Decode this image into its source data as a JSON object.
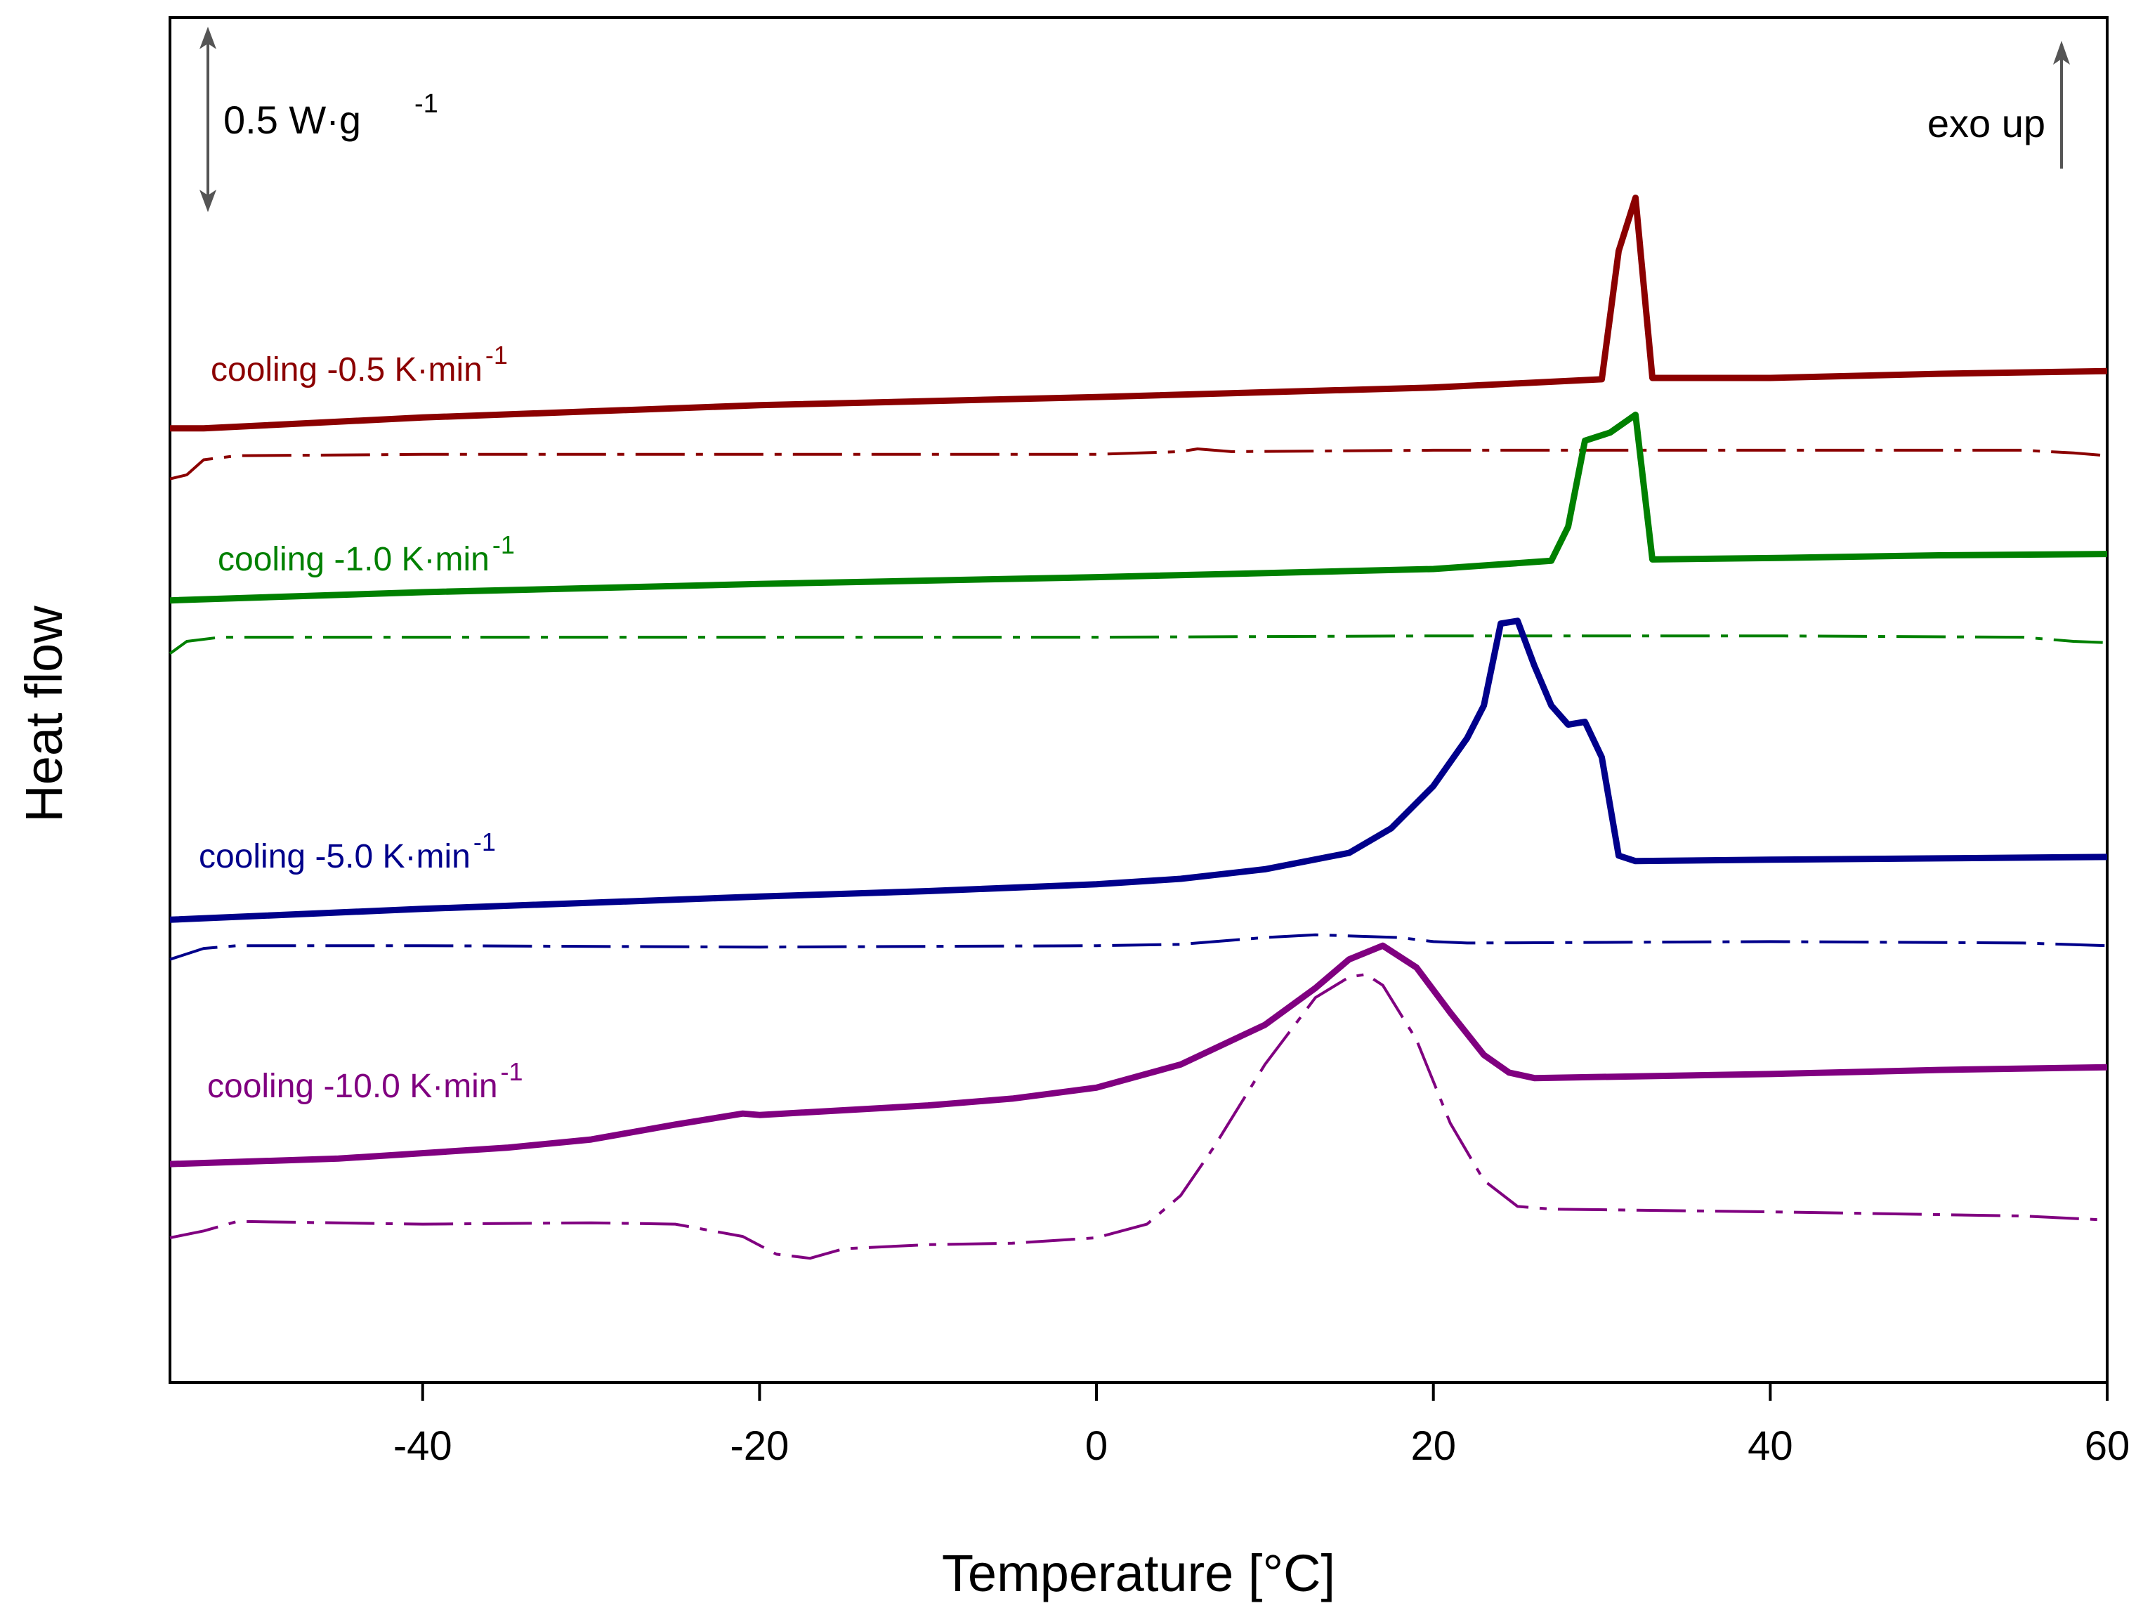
{
  "chart_data": {
    "type": "line",
    "xlabel": "Temperature [°C]",
    "ylabel": "Heat flow",
    "xlim": [
      -55,
      60
    ],
    "ylim": [
      0,
      100
    ],
    "yticks_shown": false,
    "xticks": [
      -40,
      -20,
      0,
      20,
      40,
      60
    ],
    "xtick_labels": [
      "-40",
      "-20",
      "0",
      "20",
      "40",
      "60"
    ],
    "annotations": {
      "scale_bar_value": "0.5 W·g",
      "scale_bar_exp": "-1",
      "exo_text": "exo up"
    },
    "series": [
      {
        "name": "cooling -0.5 K·min-1",
        "label_main": "cooling -0.5 K·min",
        "label_exp": "-1",
        "color": "#8b0000",
        "style": "solid",
        "points": [
          [
            -55,
            69.9
          ],
          [
            -53,
            69.9
          ],
          [
            -40,
            70.7
          ],
          [
            -20,
            71.6
          ],
          [
            0,
            72.2
          ],
          [
            20,
            72.9
          ],
          [
            30,
            73.5
          ],
          [
            31,
            82.9
          ],
          [
            32,
            86.8
          ],
          [
            33,
            73.6
          ],
          [
            40,
            73.6
          ],
          [
            50,
            73.9
          ],
          [
            60,
            74.1
          ]
        ]
      },
      {
        "name": "cooling -0.5 K·min-1 (dash-dot)",
        "color": "#8b0000",
        "style": "dashdot",
        "points": [
          [
            -55,
            66.2
          ],
          [
            -54,
            66.5
          ],
          [
            -53,
            67.6
          ],
          [
            -51,
            67.9
          ],
          [
            -40,
            68.0
          ],
          [
            -20,
            68.0
          ],
          [
            0,
            68.0
          ],
          [
            5,
            68.2
          ],
          [
            6,
            68.4
          ],
          [
            8,
            68.2
          ],
          [
            20,
            68.3
          ],
          [
            40,
            68.3
          ],
          [
            55,
            68.3
          ],
          [
            58,
            68.1
          ],
          [
            60,
            67.9
          ]
        ]
      },
      {
        "name": "cooling -1.0 K·min-1",
        "label_main": "cooling -1.0 K·min",
        "label_exp": "-1",
        "color": "#008000",
        "style": "solid",
        "points": [
          [
            -55,
            57.3
          ],
          [
            -40,
            57.9
          ],
          [
            -20,
            58.5
          ],
          [
            0,
            59.0
          ],
          [
            20,
            59.6
          ],
          [
            27,
            60.2
          ],
          [
            28,
            62.7
          ],
          [
            29,
            69.0
          ],
          [
            30.5,
            69.6
          ],
          [
            32,
            70.9
          ],
          [
            33,
            60.3
          ],
          [
            40,
            60.4
          ],
          [
            50,
            60.6
          ],
          [
            60,
            60.7
          ]
        ]
      },
      {
        "name": "cooling -1.0 K·min-1 (dash-dot)",
        "color": "#008000",
        "style": "dashdot",
        "points": [
          [
            -55,
            53.4
          ],
          [
            -54,
            54.3
          ],
          [
            -52,
            54.6
          ],
          [
            -40,
            54.6
          ],
          [
            -20,
            54.6
          ],
          [
            0,
            54.6
          ],
          [
            20,
            54.7
          ],
          [
            40,
            54.7
          ],
          [
            55,
            54.6
          ],
          [
            58,
            54.3
          ],
          [
            60,
            54.2
          ]
        ]
      },
      {
        "name": "cooling -5.0 K·min-1",
        "label_main": "cooling -5.0 K·min",
        "label_exp": "-1",
        "color": "#00008b",
        "style": "solid",
        "points": [
          [
            -55,
            33.9
          ],
          [
            -40,
            34.7
          ],
          [
            -20,
            35.6
          ],
          [
            -10,
            36.0
          ],
          [
            0,
            36.5
          ],
          [
            5,
            36.9
          ],
          [
            10,
            37.6
          ],
          [
            15,
            38.8
          ],
          [
            17.5,
            40.6
          ],
          [
            20,
            43.7
          ],
          [
            22,
            47.2
          ],
          [
            23,
            49.6
          ],
          [
            24,
            55.6
          ],
          [
            25,
            55.8
          ],
          [
            26,
            52.5
          ],
          [
            27,
            49.6
          ],
          [
            28,
            48.2
          ],
          [
            29,
            48.4
          ],
          [
            30,
            45.8
          ],
          [
            31,
            38.6
          ],
          [
            32,
            38.2
          ],
          [
            40,
            38.3
          ],
          [
            50,
            38.4
          ],
          [
            60,
            38.5
          ]
        ]
      },
      {
        "name": "cooling -5.0 K·min-1 (dash-dot)",
        "color": "#00008b",
        "style": "dashdot",
        "points": [
          [
            -55,
            31.0
          ],
          [
            -53,
            31.8
          ],
          [
            -51,
            32.0
          ],
          [
            -40,
            32.0
          ],
          [
            -20,
            31.9
          ],
          [
            0,
            32.0
          ],
          [
            5,
            32.1
          ],
          [
            10,
            32.6
          ],
          [
            13,
            32.8
          ],
          [
            18,
            32.6
          ],
          [
            20,
            32.3
          ],
          [
            22,
            32.2
          ],
          [
            40,
            32.3
          ],
          [
            55,
            32.2
          ],
          [
            60,
            32.0
          ]
        ]
      },
      {
        "name": "cooling -10.0 K·min-1",
        "label_main": "cooling -10.0 K·min",
        "label_exp": "-1",
        "color": "#800080",
        "style": "solid",
        "points": [
          [
            -55,
            16.0
          ],
          [
            -45,
            16.4
          ],
          [
            -35,
            17.2
          ],
          [
            -30,
            17.8
          ],
          [
            -25,
            18.9
          ],
          [
            -21,
            19.7
          ],
          [
            -20,
            19.6
          ],
          [
            -10,
            20.3
          ],
          [
            -5,
            20.8
          ],
          [
            0,
            21.6
          ],
          [
            5,
            23.3
          ],
          [
            10,
            26.2
          ],
          [
            13,
            28.9
          ],
          [
            15,
            31.0
          ],
          [
            17,
            32.0
          ],
          [
            19,
            30.4
          ],
          [
            21,
            27.1
          ],
          [
            23,
            24.0
          ],
          [
            24.5,
            22.7
          ],
          [
            26,
            22.3
          ],
          [
            40,
            22.6
          ],
          [
            50,
            22.9
          ],
          [
            60,
            23.1
          ]
        ]
      },
      {
        "name": "cooling -10.0 K·min-1 (dash-dot)",
        "color": "#800080",
        "style": "dashdot",
        "points": [
          [
            -55,
            10.6
          ],
          [
            -53,
            11.1
          ],
          [
            -51,
            11.8
          ],
          [
            -40,
            11.6
          ],
          [
            -30,
            11.7
          ],
          [
            -25,
            11.6
          ],
          [
            -21,
            10.7
          ],
          [
            -19,
            9.4
          ],
          [
            -17,
            9.1
          ],
          [
            -15,
            9.8
          ],
          [
            -10,
            10.1
          ],
          [
            -5,
            10.2
          ],
          [
            0,
            10.6
          ],
          [
            3,
            11.6
          ],
          [
            5,
            13.7
          ],
          [
            7,
            17.3
          ],
          [
            10,
            23.3
          ],
          [
            13,
            28.2
          ],
          [
            15,
            29.7
          ],
          [
            16,
            29.9
          ],
          [
            17,
            29.1
          ],
          [
            19,
            25.1
          ],
          [
            21,
            19.0
          ],
          [
            23,
            14.8
          ],
          [
            25,
            12.9
          ],
          [
            27,
            12.7
          ],
          [
            40,
            12.5
          ],
          [
            55,
            12.2
          ],
          [
            60,
            11.9
          ]
        ]
      }
    ]
  }
}
